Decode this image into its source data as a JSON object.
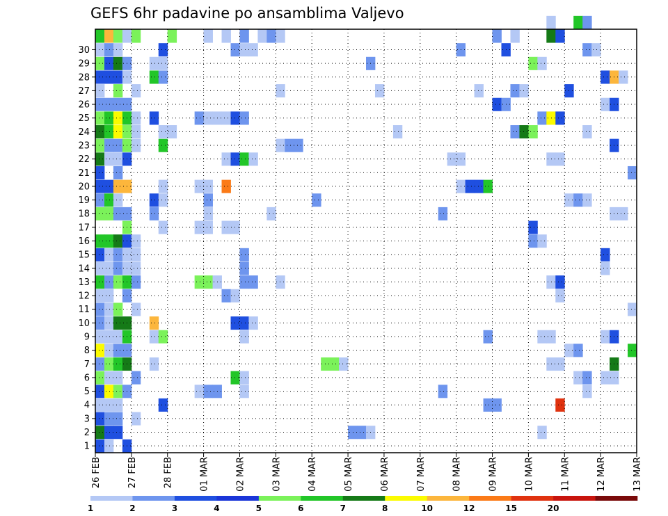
{
  "chart_data": {
    "type": "heatmap",
    "title": "GEFS 6hr padavine po ansamblima Valjevo",
    "xlabel": "",
    "ylabel": "",
    "x_ticks": [
      "26 FEB",
      "27 FEB",
      "28 FEB",
      "01 MAR",
      "02 MAR",
      "03 MAR",
      "04 MAR",
      "05 MAR",
      "06 MAR",
      "07 MAR",
      "08 MAR",
      "09 MAR",
      "10 MAR",
      "11 MAR",
      "12 MAR",
      "13 MAR"
    ],
    "y_ticks": [
      "1",
      "2",
      "3",
      "4",
      "5",
      "6",
      "7",
      "8",
      "9",
      "10",
      "11",
      "12",
      "13",
      "14",
      "15",
      "16",
      "17",
      "18",
      "19",
      "20",
      "21",
      "22",
      "23",
      "24",
      "25",
      "26",
      "27",
      "28",
      "29",
      "30"
    ],
    "xlim": [
      0,
      60
    ],
    "ylim": [
      0,
      30
    ],
    "x_unit": "6-hour steps from 26 FEB 00Z",
    "grid": true,
    "colorbar": {
      "bins": [
        1,
        2,
        3,
        4,
        5,
        6,
        7,
        8,
        10,
        12,
        15,
        20
      ],
      "labels": [
        "1",
        "2",
        "3",
        "4",
        "5",
        "6",
        "7",
        "8",
        "10",
        "12",
        "15",
        "20"
      ],
      "colors": [
        "#b4c8f5",
        "#6e95ee",
        "#1f4fe0",
        "#1a35d8",
        "#7bf25a",
        "#22c628",
        "#157a17",
        "#fbfb00",
        "#fcb63c",
        "#fb7a17",
        "#e0320f",
        "#c8140d",
        "#7a0a0a"
      ]
    },
    "points": [
      {
        "x": 0,
        "y": 0,
        "c": 2
      },
      {
        "x": 1,
        "y": 0,
        "c": 0
      },
      {
        "x": 3,
        "y": 0,
        "c": 2
      },
      {
        "x": 0,
        "y": 1,
        "c": 6
      },
      {
        "x": 1,
        "y": 1,
        "c": 2
      },
      {
        "x": 2,
        "y": 1,
        "c": 2
      },
      {
        "x": 28,
        "y": 1,
        "c": 1
      },
      {
        "x": 29,
        "y": 1,
        "c": 1
      },
      {
        "x": 30,
        "y": 1,
        "c": 0
      },
      {
        "x": 49,
        "y": 1,
        "c": 0
      },
      {
        "x": 0,
        "y": 2,
        "c": 2
      },
      {
        "x": 1,
        "y": 2,
        "c": 1
      },
      {
        "x": 2,
        "y": 2,
        "c": 1
      },
      {
        "x": 4,
        "y": 2,
        "c": 0
      },
      {
        "x": 0,
        "y": 3,
        "c": 0
      },
      {
        "x": 1,
        "y": 3,
        "c": 0
      },
      {
        "x": 2,
        "y": 3,
        "c": 0
      },
      {
        "x": 7,
        "y": 3,
        "c": 2
      },
      {
        "x": 43,
        "y": 3,
        "c": 1
      },
      {
        "x": 44,
        "y": 3,
        "c": 1
      },
      {
        "x": 51,
        "y": 3,
        "c": 10
      },
      {
        "x": 0,
        "y": 4,
        "c": 2
      },
      {
        "x": 1,
        "y": 4,
        "c": 7
      },
      {
        "x": 2,
        "y": 4,
        "c": 4
      },
      {
        "x": 3,
        "y": 4,
        "c": 1
      },
      {
        "x": 11,
        "y": 4,
        "c": 0
      },
      {
        "x": 12,
        "y": 4,
        "c": 1
      },
      {
        "x": 13,
        "y": 4,
        "c": 1
      },
      {
        "x": 16,
        "y": 4,
        "c": 0
      },
      {
        "x": 38,
        "y": 4,
        "c": 1
      },
      {
        "x": 54,
        "y": 4,
        "c": 0
      },
      {
        "x": 0,
        "y": 5,
        "c": 4
      },
      {
        "x": 1,
        "y": 5,
        "c": 0
      },
      {
        "x": 2,
        "y": 5,
        "c": 0
      },
      {
        "x": 4,
        "y": 5,
        "c": 1
      },
      {
        "x": 15,
        "y": 5,
        "c": 5
      },
      {
        "x": 16,
        "y": 5,
        "c": 0
      },
      {
        "x": 53,
        "y": 5,
        "c": 0
      },
      {
        "x": 54,
        "y": 5,
        "c": 1
      },
      {
        "x": 56,
        "y": 5,
        "c": 0
      },
      {
        "x": 57,
        "y": 5,
        "c": 0
      },
      {
        "x": 0,
        "y": 6,
        "c": 1
      },
      {
        "x": 1,
        "y": 6,
        "c": 4
      },
      {
        "x": 2,
        "y": 6,
        "c": 5
      },
      {
        "x": 3,
        "y": 6,
        "c": 6
      },
      {
        "x": 6,
        "y": 6,
        "c": 0
      },
      {
        "x": 25,
        "y": 6,
        "c": 4
      },
      {
        "x": 26,
        "y": 6,
        "c": 4
      },
      {
        "x": 27,
        "y": 6,
        "c": 0
      },
      {
        "x": 50,
        "y": 6,
        "c": 0
      },
      {
        "x": 51,
        "y": 6,
        "c": 0
      },
      {
        "x": 57,
        "y": 6,
        "c": 6
      },
      {
        "x": 0,
        "y": 7,
        "c": 7
      },
      {
        "x": 1,
        "y": 7,
        "c": 0
      },
      {
        "x": 2,
        "y": 7,
        "c": 1
      },
      {
        "x": 3,
        "y": 7,
        "c": 1
      },
      {
        "x": 52,
        "y": 7,
        "c": 0
      },
      {
        "x": 53,
        "y": 7,
        "c": 1
      },
      {
        "x": 59,
        "y": 7,
        "c": 5
      },
      {
        "x": 0,
        "y": 8,
        "c": 0
      },
      {
        "x": 1,
        "y": 8,
        "c": 0
      },
      {
        "x": 2,
        "y": 8,
        "c": 0
      },
      {
        "x": 3,
        "y": 8,
        "c": 5
      },
      {
        "x": 6,
        "y": 8,
        "c": 0
      },
      {
        "x": 7,
        "y": 8,
        "c": 4
      },
      {
        "x": 16,
        "y": 8,
        "c": 0
      },
      {
        "x": 43,
        "y": 8,
        "c": 1
      },
      {
        "x": 49,
        "y": 8,
        "c": 0
      },
      {
        "x": 50,
        "y": 8,
        "c": 0
      },
      {
        "x": 56,
        "y": 8,
        "c": 0
      },
      {
        "x": 57,
        "y": 8,
        "c": 2
      },
      {
        "x": 0,
        "y": 9,
        "c": 1
      },
      {
        "x": 1,
        "y": 9,
        "c": 0
      },
      {
        "x": 2,
        "y": 9,
        "c": 6
      },
      {
        "x": 3,
        "y": 9,
        "c": 6
      },
      {
        "x": 6,
        "y": 9,
        "c": 8
      },
      {
        "x": 15,
        "y": 9,
        "c": 2
      },
      {
        "x": 16,
        "y": 9,
        "c": 2
      },
      {
        "x": 17,
        "y": 9,
        "c": 0
      },
      {
        "x": 0,
        "y": 10,
        "c": 1
      },
      {
        "x": 1,
        "y": 10,
        "c": 0
      },
      {
        "x": 2,
        "y": 10,
        "c": 4
      },
      {
        "x": 4,
        "y": 10,
        "c": 0
      },
      {
        "x": 59,
        "y": 10,
        "c": 0
      },
      {
        "x": 0,
        "y": 11,
        "c": 0
      },
      {
        "x": 1,
        "y": 11,
        "c": 0
      },
      {
        "x": 3,
        "y": 11,
        "c": 1
      },
      {
        "x": 14,
        "y": 11,
        "c": 1
      },
      {
        "x": 15,
        "y": 11,
        "c": 0
      },
      {
        "x": 51,
        "y": 11,
        "c": 0
      },
      {
        "x": 0,
        "y": 12,
        "c": 5
      },
      {
        "x": 1,
        "y": 12,
        "c": 1
      },
      {
        "x": 2,
        "y": 12,
        "c": 4
      },
      {
        "x": 3,
        "y": 12,
        "c": 5
      },
      {
        "x": 4,
        "y": 12,
        "c": 1
      },
      {
        "x": 11,
        "y": 12,
        "c": 4
      },
      {
        "x": 12,
        "y": 12,
        "c": 4
      },
      {
        "x": 13,
        "y": 12,
        "c": 0
      },
      {
        "x": 16,
        "y": 12,
        "c": 1
      },
      {
        "x": 17,
        "y": 12,
        "c": 1
      },
      {
        "x": 20,
        "y": 12,
        "c": 0
      },
      {
        "x": 50,
        "y": 12,
        "c": 0
      },
      {
        "x": 51,
        "y": 12,
        "c": 2
      },
      {
        "x": 0,
        "y": 13,
        "c": 0
      },
      {
        "x": 1,
        "y": 13,
        "c": 0
      },
      {
        "x": 2,
        "y": 13,
        "c": 1
      },
      {
        "x": 3,
        "y": 13,
        "c": 0
      },
      {
        "x": 4,
        "y": 13,
        "c": 0
      },
      {
        "x": 16,
        "y": 13,
        "c": 1
      },
      {
        "x": 56,
        "y": 13,
        "c": 0
      },
      {
        "x": 0,
        "y": 14,
        "c": 2
      },
      {
        "x": 1,
        "y": 14,
        "c": 0
      },
      {
        "x": 2,
        "y": 14,
        "c": 1
      },
      {
        "x": 3,
        "y": 14,
        "c": 0
      },
      {
        "x": 4,
        "y": 14,
        "c": 0
      },
      {
        "x": 16,
        "y": 14,
        "c": 1
      },
      {
        "x": 56,
        "y": 14,
        "c": 2
      },
      {
        "x": 0,
        "y": 15,
        "c": 5
      },
      {
        "x": 1,
        "y": 15,
        "c": 5
      },
      {
        "x": 2,
        "y": 15,
        "c": 6
      },
      {
        "x": 3,
        "y": 15,
        "c": 2
      },
      {
        "x": 4,
        "y": 15,
        "c": 0
      },
      {
        "x": 48,
        "y": 15,
        "c": 1
      },
      {
        "x": 49,
        "y": 15,
        "c": 0
      },
      {
        "x": 3,
        "y": 16,
        "c": 4
      },
      {
        "x": 7,
        "y": 16,
        "c": 0
      },
      {
        "x": 11,
        "y": 16,
        "c": 0
      },
      {
        "x": 12,
        "y": 16,
        "c": 0
      },
      {
        "x": 14,
        "y": 16,
        "c": 0
      },
      {
        "x": 15,
        "y": 16,
        "c": 0
      },
      {
        "x": 48,
        "y": 16,
        "c": 2
      },
      {
        "x": 0,
        "y": 17,
        "c": 4
      },
      {
        "x": 1,
        "y": 17,
        "c": 4
      },
      {
        "x": 2,
        "y": 17,
        "c": 1
      },
      {
        "x": 3,
        "y": 17,
        "c": 1
      },
      {
        "x": 6,
        "y": 17,
        "c": 1
      },
      {
        "x": 12,
        "y": 17,
        "c": 0
      },
      {
        "x": 19,
        "y": 17,
        "c": 0
      },
      {
        "x": 38,
        "y": 17,
        "c": 1
      },
      {
        "x": 57,
        "y": 17,
        "c": 0
      },
      {
        "x": 58,
        "y": 17,
        "c": 0
      },
      {
        "x": 0,
        "y": 18,
        "c": 1
      },
      {
        "x": 1,
        "y": 18,
        "c": 5
      },
      {
        "x": 2,
        "y": 18,
        "c": 0
      },
      {
        "x": 6,
        "y": 18,
        "c": 2
      },
      {
        "x": 7,
        "y": 18,
        "c": 0
      },
      {
        "x": 12,
        "y": 18,
        "c": 1
      },
      {
        "x": 24,
        "y": 18,
        "c": 1
      },
      {
        "x": 52,
        "y": 18,
        "c": 0
      },
      {
        "x": 53,
        "y": 18,
        "c": 1
      },
      {
        "x": 54,
        "y": 18,
        "c": 0
      },
      {
        "x": 0,
        "y": 19,
        "c": 2
      },
      {
        "x": 1,
        "y": 19,
        "c": 2
      },
      {
        "x": 2,
        "y": 19,
        "c": 8
      },
      {
        "x": 3,
        "y": 19,
        "c": 8
      },
      {
        "x": 7,
        "y": 19,
        "c": 0
      },
      {
        "x": 11,
        "y": 19,
        "c": 0
      },
      {
        "x": 12,
        "y": 19,
        "c": 0
      },
      {
        "x": 14,
        "y": 19,
        "c": 9
      },
      {
        "x": 40,
        "y": 19,
        "c": 0
      },
      {
        "x": 41,
        "y": 19,
        "c": 2
      },
      {
        "x": 42,
        "y": 19,
        "c": 2
      },
      {
        "x": 43,
        "y": 19,
        "c": 5
      },
      {
        "x": 0,
        "y": 20,
        "c": 2
      },
      {
        "x": 2,
        "y": 20,
        "c": 1
      },
      {
        "x": 59,
        "y": 20,
        "c": 1
      },
      {
        "x": 0,
        "y": 21,
        "c": 6
      },
      {
        "x": 1,
        "y": 21,
        "c": 0
      },
      {
        "x": 2,
        "y": 21,
        "c": 0
      },
      {
        "x": 3,
        "y": 21,
        "c": 2
      },
      {
        "x": 14,
        "y": 21,
        "c": 0
      },
      {
        "x": 15,
        "y": 21,
        "c": 2
      },
      {
        "x": 16,
        "y": 21,
        "c": 5
      },
      {
        "x": 17,
        "y": 21,
        "c": 0
      },
      {
        "x": 39,
        "y": 21,
        "c": 0
      },
      {
        "x": 40,
        "y": 21,
        "c": 0
      },
      {
        "x": 50,
        "y": 21,
        "c": 0
      },
      {
        "x": 51,
        "y": 21,
        "c": 0
      },
      {
        "x": 0,
        "y": 22,
        "c": 4
      },
      {
        "x": 1,
        "y": 22,
        "c": 1
      },
      {
        "x": 2,
        "y": 22,
        "c": 1
      },
      {
        "x": 3,
        "y": 22,
        "c": 4
      },
      {
        "x": 4,
        "y": 22,
        "c": 0
      },
      {
        "x": 7,
        "y": 22,
        "c": 5
      },
      {
        "x": 20,
        "y": 22,
        "c": 0
      },
      {
        "x": 21,
        "y": 22,
        "c": 1
      },
      {
        "x": 22,
        "y": 22,
        "c": 1
      },
      {
        "x": 57,
        "y": 22,
        "c": 2
      },
      {
        "x": 0,
        "y": 23,
        "c": 6
      },
      {
        "x": 1,
        "y": 23,
        "c": 5
      },
      {
        "x": 2,
        "y": 23,
        "c": 7
      },
      {
        "x": 3,
        "y": 23,
        "c": 4
      },
      {
        "x": 4,
        "y": 23,
        "c": 0
      },
      {
        "x": 7,
        "y": 23,
        "c": 0
      },
      {
        "x": 8,
        "y": 23,
        "c": 0
      },
      {
        "x": 33,
        "y": 23,
        "c": 0
      },
      {
        "x": 46,
        "y": 23,
        "c": 1
      },
      {
        "x": 47,
        "y": 23,
        "c": 6
      },
      {
        "x": 48,
        "y": 23,
        "c": 4
      },
      {
        "x": 54,
        "y": 23,
        "c": 0
      },
      {
        "x": 0,
        "y": 24,
        "c": 4
      },
      {
        "x": 1,
        "y": 24,
        "c": 5
      },
      {
        "x": 2,
        "y": 24,
        "c": 7
      },
      {
        "x": 3,
        "y": 24,
        "c": 5
      },
      {
        "x": 4,
        "y": 24,
        "c": 0
      },
      {
        "x": 6,
        "y": 24,
        "c": 2
      },
      {
        "x": 11,
        "y": 24,
        "c": 1
      },
      {
        "x": 12,
        "y": 24,
        "c": 0
      },
      {
        "x": 13,
        "y": 24,
        "c": 0
      },
      {
        "x": 14,
        "y": 24,
        "c": 0
      },
      {
        "x": 15,
        "y": 24,
        "c": 2
      },
      {
        "x": 16,
        "y": 24,
        "c": 1
      },
      {
        "x": 49,
        "y": 24,
        "c": 1
      },
      {
        "x": 50,
        "y": 24,
        "c": 7
      },
      {
        "x": 51,
        "y": 24,
        "c": 2
      },
      {
        "x": 0,
        "y": 25,
        "c": 1
      },
      {
        "x": 1,
        "y": 25,
        "c": 1
      },
      {
        "x": 2,
        "y": 25,
        "c": 1
      },
      {
        "x": 3,
        "y": 25,
        "c": 1
      },
      {
        "x": 44,
        "y": 25,
        "c": 2
      },
      {
        "x": 45,
        "y": 25,
        "c": 1
      },
      {
        "x": 56,
        "y": 25,
        "c": 0
      },
      {
        "x": 57,
        "y": 25,
        "c": 2
      },
      {
        "x": 0,
        "y": 26,
        "c": 0
      },
      {
        "x": 2,
        "y": 26,
        "c": 4
      },
      {
        "x": 4,
        "y": 26,
        "c": 0
      },
      {
        "x": 20,
        "y": 26,
        "c": 0
      },
      {
        "x": 31,
        "y": 26,
        "c": 0
      },
      {
        "x": 42,
        "y": 26,
        "c": 0
      },
      {
        "x": 46,
        "y": 26,
        "c": 1
      },
      {
        "x": 47,
        "y": 26,
        "c": 0
      },
      {
        "x": 52,
        "y": 26,
        "c": 2
      },
      {
        "x": 0,
        "y": 27,
        "c": 2
      },
      {
        "x": 1,
        "y": 27,
        "c": 2
      },
      {
        "x": 2,
        "y": 27,
        "c": 2
      },
      {
        "x": 3,
        "y": 27,
        "c": 0
      },
      {
        "x": 6,
        "y": 27,
        "c": 5
      },
      {
        "x": 7,
        "y": 27,
        "c": 1
      },
      {
        "x": 56,
        "y": 27,
        "c": 2
      },
      {
        "x": 57,
        "y": 27,
        "c": 8
      },
      {
        "x": 58,
        "y": 27,
        "c": 0
      },
      {
        "x": 0,
        "y": 28,
        "c": 4
      },
      {
        "x": 1,
        "y": 28,
        "c": 2
      },
      {
        "x": 2,
        "y": 28,
        "c": 6
      },
      {
        "x": 3,
        "y": 28,
        "c": 1
      },
      {
        "x": 6,
        "y": 28,
        "c": 0
      },
      {
        "x": 7,
        "y": 28,
        "c": 0
      },
      {
        "x": 30,
        "y": 28,
        "c": 1
      },
      {
        "x": 48,
        "y": 28,
        "c": 4
      },
      {
        "x": 49,
        "y": 28,
        "c": 0
      },
      {
        "x": 0,
        "y": 29,
        "c": 0
      },
      {
        "x": 1,
        "y": 29,
        "c": 1
      },
      {
        "x": 2,
        "y": 29,
        "c": 0
      },
      {
        "x": 7,
        "y": 29,
        "c": 2
      },
      {
        "x": 15,
        "y": 29,
        "c": 1
      },
      {
        "x": 16,
        "y": 29,
        "c": 0
      },
      {
        "x": 17,
        "y": 29,
        "c": 0
      },
      {
        "x": 40,
        "y": 29,
        "c": 1
      },
      {
        "x": 45,
        "y": 29,
        "c": 2
      },
      {
        "x": 54,
        "y": 29,
        "c": 1
      },
      {
        "x": 55,
        "y": 29,
        "c": 0
      },
      {
        "x": 0,
        "y": 30,
        "c": 5
      },
      {
        "x": 1,
        "y": 30,
        "c": 8
      },
      {
        "x": 2,
        "y": 30,
        "c": 4
      },
      {
        "x": 3,
        "y": 30,
        "c": 0
      },
      {
        "x": 4,
        "y": 30,
        "c": 4
      },
      {
        "x": 8,
        "y": 30,
        "c": 4
      },
      {
        "x": 12,
        "y": 30,
        "c": 0
      },
      {
        "x": 14,
        "y": 30,
        "c": 0
      },
      {
        "x": 16,
        "y": 30,
        "c": 1
      },
      {
        "x": 18,
        "y": 30,
        "c": 0
      },
      {
        "x": 19,
        "y": 30,
        "c": 1
      },
      {
        "x": 20,
        "y": 30,
        "c": 0
      },
      {
        "x": 44,
        "y": 30,
        "c": 1
      },
      {
        "x": 46,
        "y": 30,
        "c": 0
      },
      {
        "x": 50,
        "y": 30,
        "c": 6
      },
      {
        "x": 51,
        "y": 30,
        "c": 2
      },
      {
        "x": 50,
        "y": 31,
        "c": 0
      },
      {
        "x": 53,
        "y": 31,
        "c": 5
      },
      {
        "x": 54,
        "y": 31,
        "c": 1
      }
    ]
  }
}
